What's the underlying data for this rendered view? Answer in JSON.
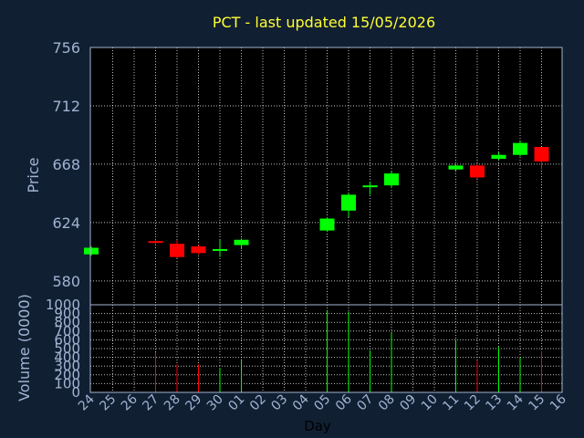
{
  "chart_data": {
    "type": "candlestick",
    "title": "PCT - last updated 15/05/2026",
    "price_ylabel": "Price",
    "volume_ylabel": "Volume (0000)",
    "xlabel": "Day",
    "x_tick_labels": [
      "24",
      "25",
      "26",
      "27",
      "28",
      "29",
      "30",
      "01",
      "02",
      "03",
      "04",
      "05",
      "06",
      "07",
      "08",
      "09",
      "10",
      "11",
      "12",
      "13",
      "14",
      "15",
      "16"
    ],
    "price_ylim": [
      562,
      756
    ],
    "price_yticks": [
      580,
      624,
      668,
      712,
      756
    ],
    "volume_ylim": [
      0,
      1000
    ],
    "volume_yticks": [
      0,
      100,
      200,
      300,
      400,
      500,
      600,
      700,
      800,
      900,
      1000
    ],
    "grid": true,
    "colors": {
      "background": "#111f33",
      "plot_background": "#000000",
      "up": "#00ff00",
      "down": "#ff0000",
      "grid": "#ffffff",
      "text": "#a2b4d2",
      "title": "#ffff33"
    },
    "candles": [
      {
        "day": "24",
        "open": 600,
        "close": 605,
        "high": 606,
        "low": 599,
        "volume": 0
      },
      {
        "day": "27",
        "open": 610,
        "close": 609,
        "high": 611,
        "low": 608,
        "volume": 460
      },
      {
        "day": "28",
        "open": 608,
        "close": 598,
        "high": 611,
        "low": 597,
        "volume": 320
      },
      {
        "day": "29",
        "open": 606,
        "close": 601,
        "high": 607,
        "low": 600,
        "volume": 320
      },
      {
        "day": "30",
        "open": 603,
        "close": 604,
        "high": 611,
        "low": 598,
        "volume": 280
      },
      {
        "day": "01",
        "open": 607,
        "close": 611,
        "high": 612,
        "low": 604,
        "volume": 380
      },
      {
        "day": "05",
        "open": 618,
        "close": 627,
        "high": 628,
        "low": 617,
        "volume": 940
      },
      {
        "day": "06",
        "open": 633,
        "close": 645,
        "high": 646,
        "low": 628,
        "volume": 920
      },
      {
        "day": "07",
        "open": 651,
        "close": 652,
        "high": 655,
        "low": 645,
        "volume": 480
      },
      {
        "day": "08",
        "open": 652,
        "close": 661,
        "high": 663,
        "low": 650,
        "volume": 680
      },
      {
        "day": "11",
        "open": 664,
        "close": 667,
        "high": 668,
        "low": 663,
        "volume": 600
      },
      {
        "day": "12",
        "open": 667,
        "close": 658,
        "high": 668,
        "low": 657,
        "volume": 360
      },
      {
        "day": "13",
        "open": 672,
        "close": 675,
        "high": 677,
        "low": 671,
        "volume": 520
      },
      {
        "day": "14",
        "open": 675,
        "close": 684,
        "high": 686,
        "low": 674,
        "volume": 400
      },
      {
        "day": "15",
        "open": 681,
        "close": 670,
        "high": 681,
        "low": 664,
        "volume": 470
      }
    ]
  }
}
